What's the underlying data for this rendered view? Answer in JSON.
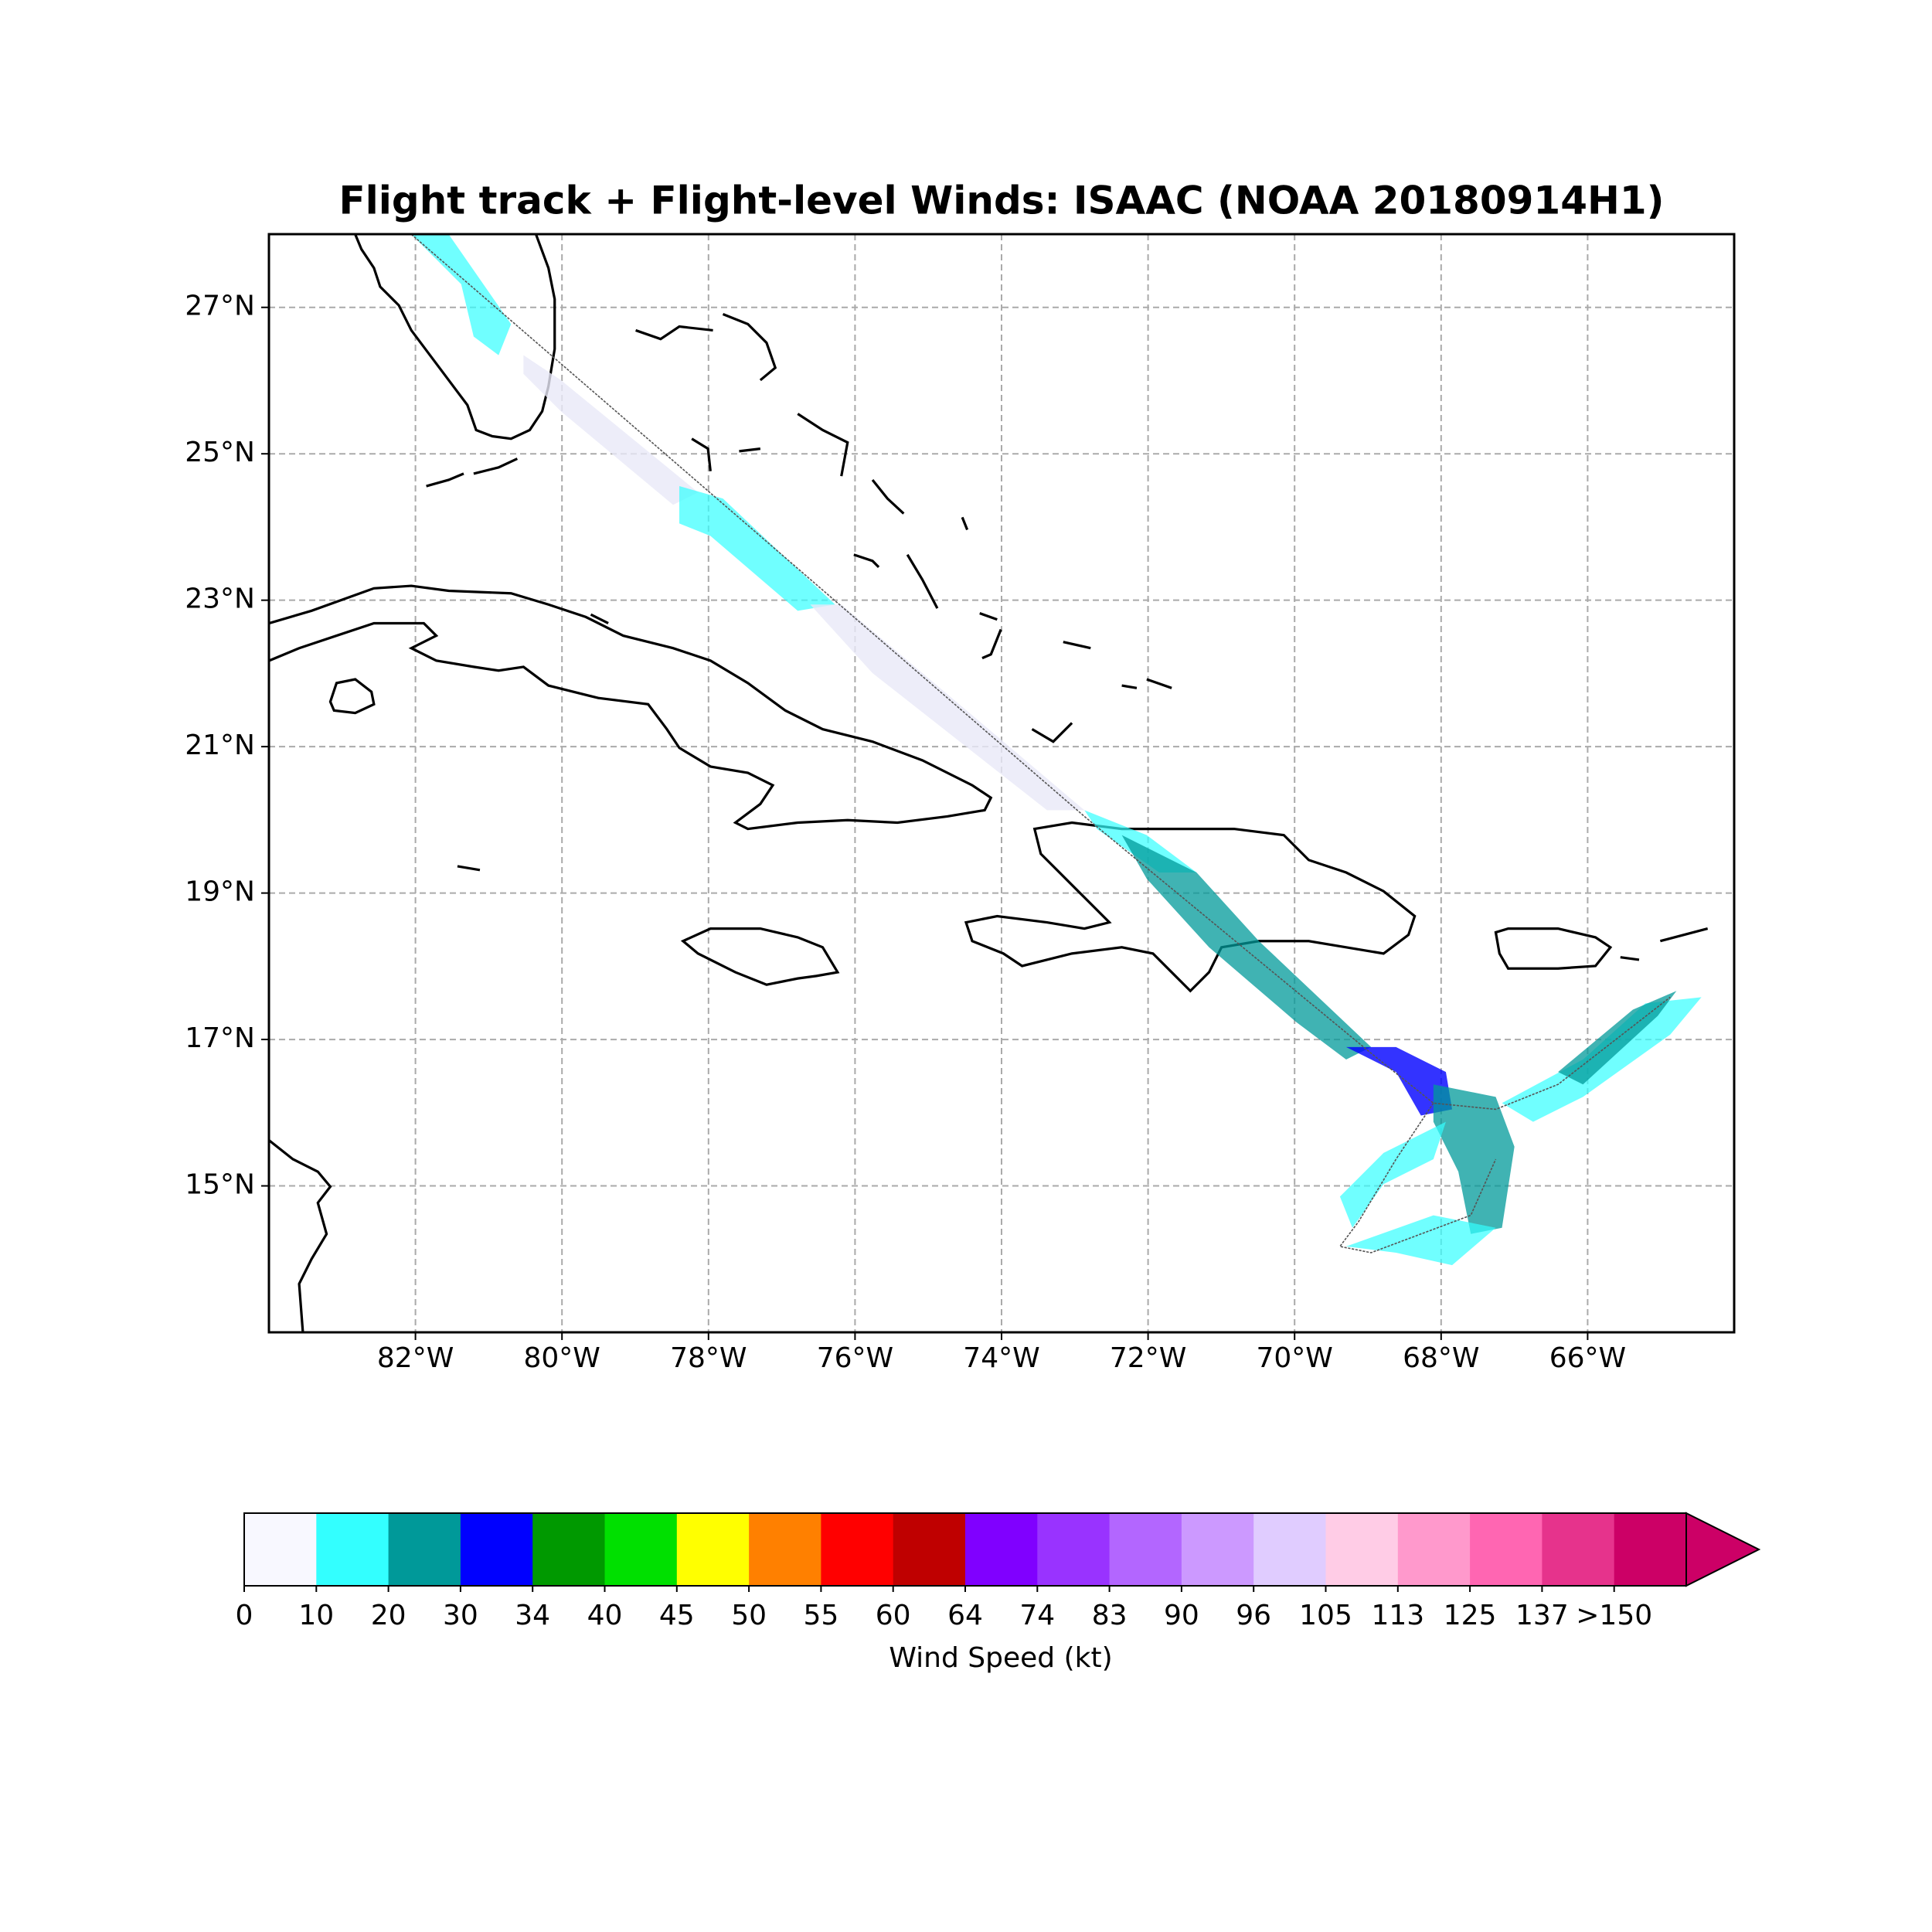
{
  "map": {
    "title": "Flight track + Flight-level Winds: ISAAC (NOAA 20180914H1)",
    "xlim": [
      -84,
      -64
    ],
    "ylim": [
      13,
      28
    ],
    "grid": true,
    "xticks": [
      {
        "value": -82,
        "label": "82°W"
      },
      {
        "value": -80,
        "label": "80°W"
      },
      {
        "value": -78,
        "label": "78°W"
      },
      {
        "value": -76,
        "label": "76°W"
      },
      {
        "value": -74,
        "label": "74°W"
      },
      {
        "value": -72,
        "label": "72°W"
      },
      {
        "value": -70,
        "label": "70°W"
      },
      {
        "value": -68,
        "label": "68°W"
      },
      {
        "value": -66,
        "label": "66°W"
      }
    ],
    "yticks": [
      {
        "value": 15,
        "label": "15°N"
      },
      {
        "value": 17,
        "label": "17°N"
      },
      {
        "value": 19,
        "label": "19°N"
      },
      {
        "value": 21,
        "label": "21°N"
      },
      {
        "value": 23,
        "label": "23°N"
      },
      {
        "value": 25,
        "label": "25°N"
      },
      {
        "value": 27,
        "label": "27°N"
      }
    ]
  },
  "colorbar": {
    "label": "Wind Speed (kt)",
    "levels": [
      0,
      10,
      20,
      30,
      34,
      40,
      45,
      50,
      55,
      60,
      64,
      74,
      83,
      90,
      96,
      105,
      113,
      125,
      137,
      {
        "value": 150,
        "label": ">150"
      }
    ],
    "colors": [
      "#f8f8ff",
      "#33ffff",
      "#009999",
      "#0000ff",
      "#009900",
      "#00e000",
      "#ffff00",
      "#ff8000",
      "#ff0000",
      "#bf0000",
      "#8000ff",
      "#9933ff",
      "#b366ff",
      "#cc99ff",
      "#e0ccff",
      "#ffcce6",
      "#ff99cc",
      "#ff66b2",
      "#e6338c",
      "#cc0066"
    ]
  }
}
